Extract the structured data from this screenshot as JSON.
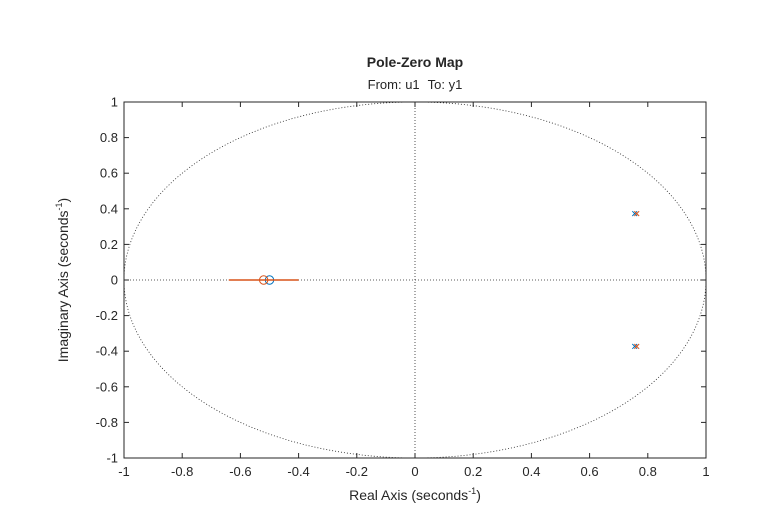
{
  "chart_data": {
    "type": "scatter",
    "title": "Pole-Zero Map",
    "subtitle": {
      "from_label": "From: u1",
      "to_label": "To: y1"
    },
    "xlabel": {
      "base": "Real  Axis  (seconds",
      "sup": "-1",
      "close": ")"
    },
    "ylabel": {
      "base": "Imaginary  Axis  (seconds",
      "sup": "-1",
      "close": ")"
    },
    "xlim": [
      -1,
      1
    ],
    "ylim": [
      -1,
      1
    ],
    "xticks": [
      -1,
      -0.8,
      -0.6,
      -0.4,
      -0.2,
      0,
      0.2,
      0.4,
      0.6,
      0.8,
      1
    ],
    "yticks": [
      -1,
      -0.8,
      -0.6,
      -0.4,
      -0.2,
      0,
      0.2,
      0.4,
      0.6,
      0.8,
      1
    ],
    "tick_labels_x": [
      "-1",
      "-0.8",
      "-0.6",
      "-0.4",
      "-0.2",
      "0",
      "0.2",
      "0.4",
      "0.6",
      "0.8",
      "1"
    ],
    "tick_labels_y": [
      "-1",
      "-0.8",
      "-0.6",
      "-0.4",
      "-0.2",
      "0",
      "0.2",
      "0.4",
      "0.6",
      "0.8",
      "1"
    ],
    "unit_circle": true,
    "grid": false,
    "colors": {
      "series1": "#0072bd",
      "series2": "#d95319",
      "guide": "#262626"
    },
    "series": [
      {
        "poles": [
          [
            0.755,
            0.373
          ],
          [
            0.755,
            -0.373
          ]
        ],
        "zeros": [
          [
            -0.5,
            0
          ]
        ]
      },
      {
        "poles": [
          [
            0.762,
            0.373
          ],
          [
            0.762,
            -0.373
          ]
        ],
        "zeros": [
          [
            -0.52,
            0
          ]
        ],
        "segment": [
          [
            -0.64,
            0
          ],
          [
            -0.4,
            0
          ]
        ]
      }
    ]
  }
}
